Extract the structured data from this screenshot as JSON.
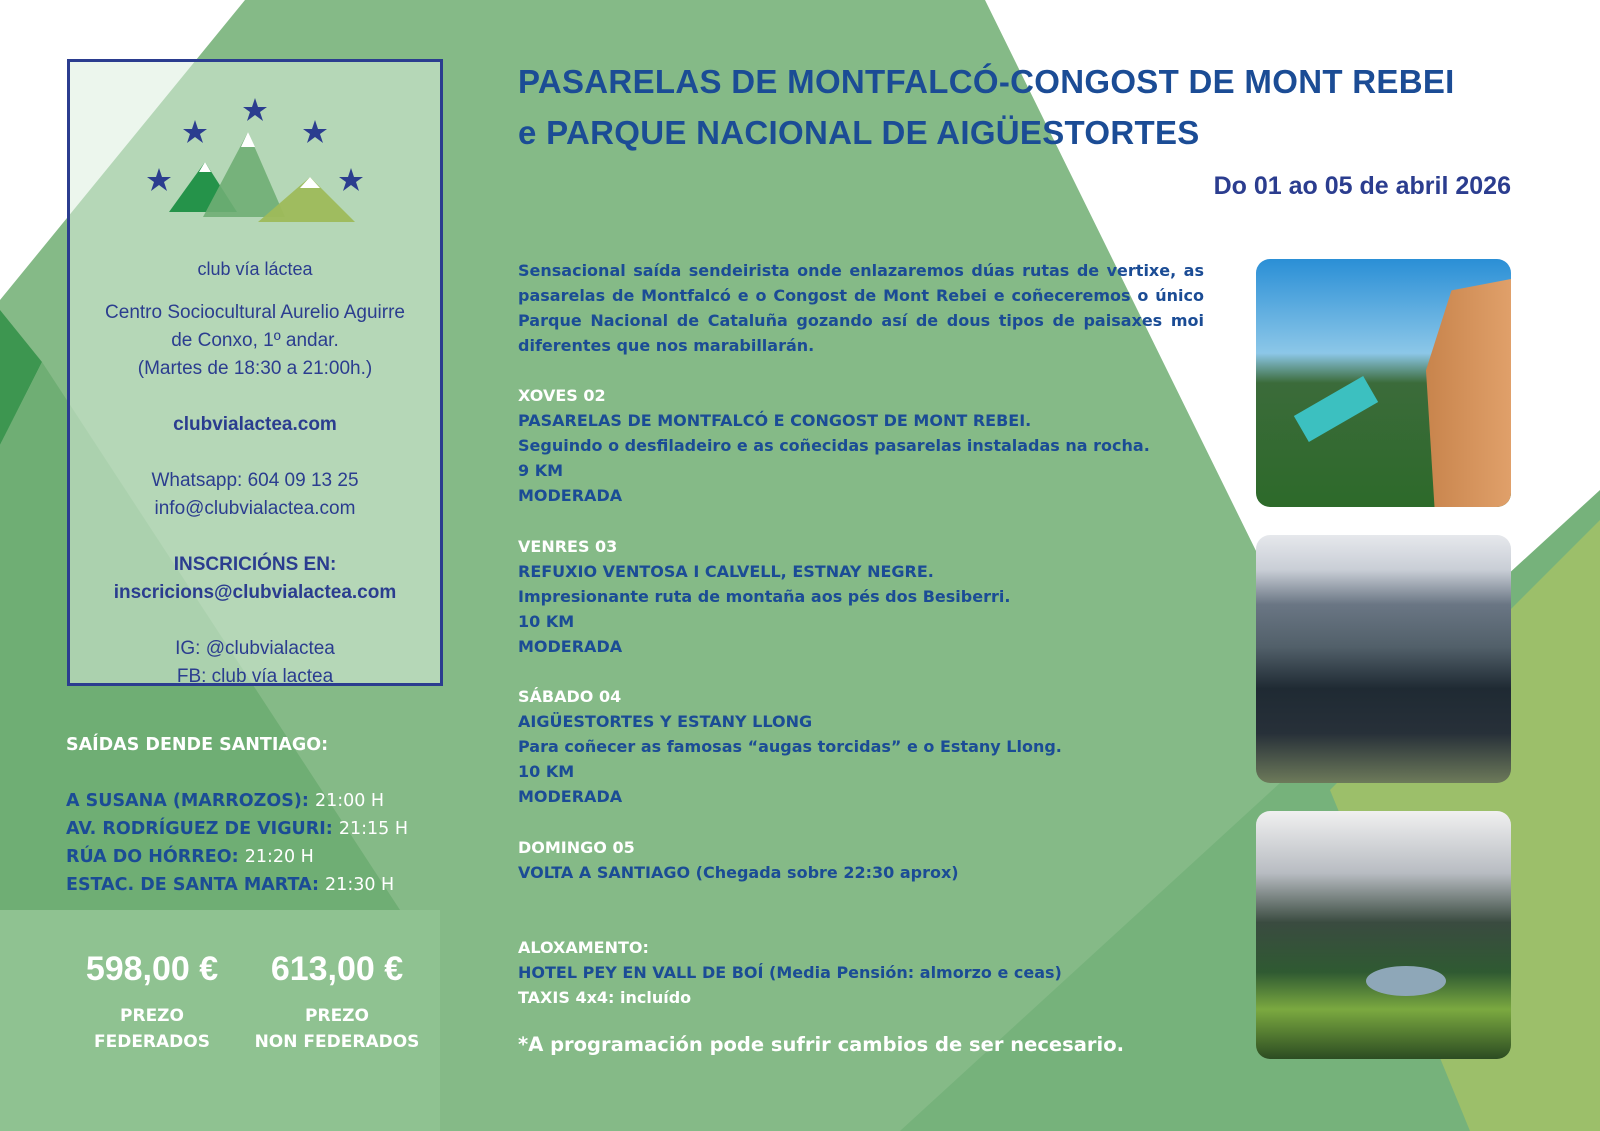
{
  "colors": {
    "navy": "#2b3d8f",
    "blue": "#1b4c95",
    "green": "#85ba87",
    "dark_green": "#3d9650",
    "olive": "#9cbf6a"
  },
  "logo": {
    "name": "club vía láctea",
    "icons": [
      "star-icon",
      "mountain-icon"
    ]
  },
  "info": {
    "venue_line1": "Centro Sociocultural Aurelio Aguirre",
    "venue_line2": "de Conxo, 1º andar.",
    "hours": "(Martes de 18:30 a 21:00h.)",
    "website": "clubvialactea.com",
    "whatsapp": "Whatsapp: 604 09 13 25",
    "email": "info@clubvialactea.com",
    "inscription_label": "INSCRICIÓNS EN:",
    "inscription_email": "inscricions@clubvialactea.com",
    "instagram": "IG: @clubvialactea",
    "facebook": "FB: club vía lactea"
  },
  "title": {
    "line1": "PASARELAS DE MONTFALCÓ-CONGOST DE MONT REBEI",
    "line2": "e PARQUE NACIONAL DE AIGÜESTORTES"
  },
  "dates": "Do 01 ao 05 de abril 2026",
  "intro": "Sensacional saída sendeirista onde enlazaremos dúas rutas de vertixe, as pasarelas de Montfalcó e o Congost de Mont Rebei e coñeceremos o único Parque Nacional de Cataluña gozando así de dous tipos de paisaxes moi diferentes que nos marabillarán.",
  "days": [
    {
      "day": "XOVES 02",
      "route": "PASARELAS DE MONTFALCÓ E CONGOST DE MONT REBEI.",
      "desc": "Seguindo o desfiladeiro e as coñecidas pasarelas instaladas na rocha.",
      "distance": "9 KM",
      "difficulty": "MODERADA"
    },
    {
      "day": "VENRES 03",
      "route": "REFUXIO VENTOSA I CALVELL, ESTNAY NEGRE.",
      "desc": "Impresionante ruta de montaña aos pés dos Besiberri.",
      "distance": "10 KM",
      "difficulty": "MODERADA"
    },
    {
      "day": "SÁBADO 04",
      "route": "AIGÜESTORTES Y ESTANY LLONG",
      "desc": "Para coñecer as famosas “augas torcidas” e o Estany Llong.",
      "distance": "10 KM",
      "difficulty": "MODERADA"
    },
    {
      "day": "DOMINGO 05",
      "route": "VOLTA A SANTIAGO (Chegada sobre 22:30 aprox)"
    }
  ],
  "lodging": {
    "label": "ALOXAMENTO:",
    "hotel": "HOTEL PEY EN VALL DE BOÍ (Media Pensión: almorzo e ceas)",
    "taxis": "TAXIS 4x4: incluído"
  },
  "departures": {
    "heading": "SAÍDAS DENDE SANTIAGO:",
    "stops": [
      {
        "place": "A SUSANA (MARROZOS):",
        "time": "21:00 H"
      },
      {
        "place": "AV. RODRÍGUEZ DE VIGURI:",
        "time": "21:15 H"
      },
      {
        "place": "RÚA DO HÓRREO:",
        "time": "21:20 H"
      },
      {
        "place": "ESTAC. DE SANTA MARTA:",
        "time": "21:30 H"
      }
    ]
  },
  "prices": [
    {
      "value": "598,00 €",
      "label1": "PREZO",
      "label2": "FEDERADOS"
    },
    {
      "value": "613,00 €",
      "label1": "PREZO",
      "label2": "NON FEDERADOS"
    }
  ],
  "note": "*A programación pode sufrir cambios de ser necesario."
}
